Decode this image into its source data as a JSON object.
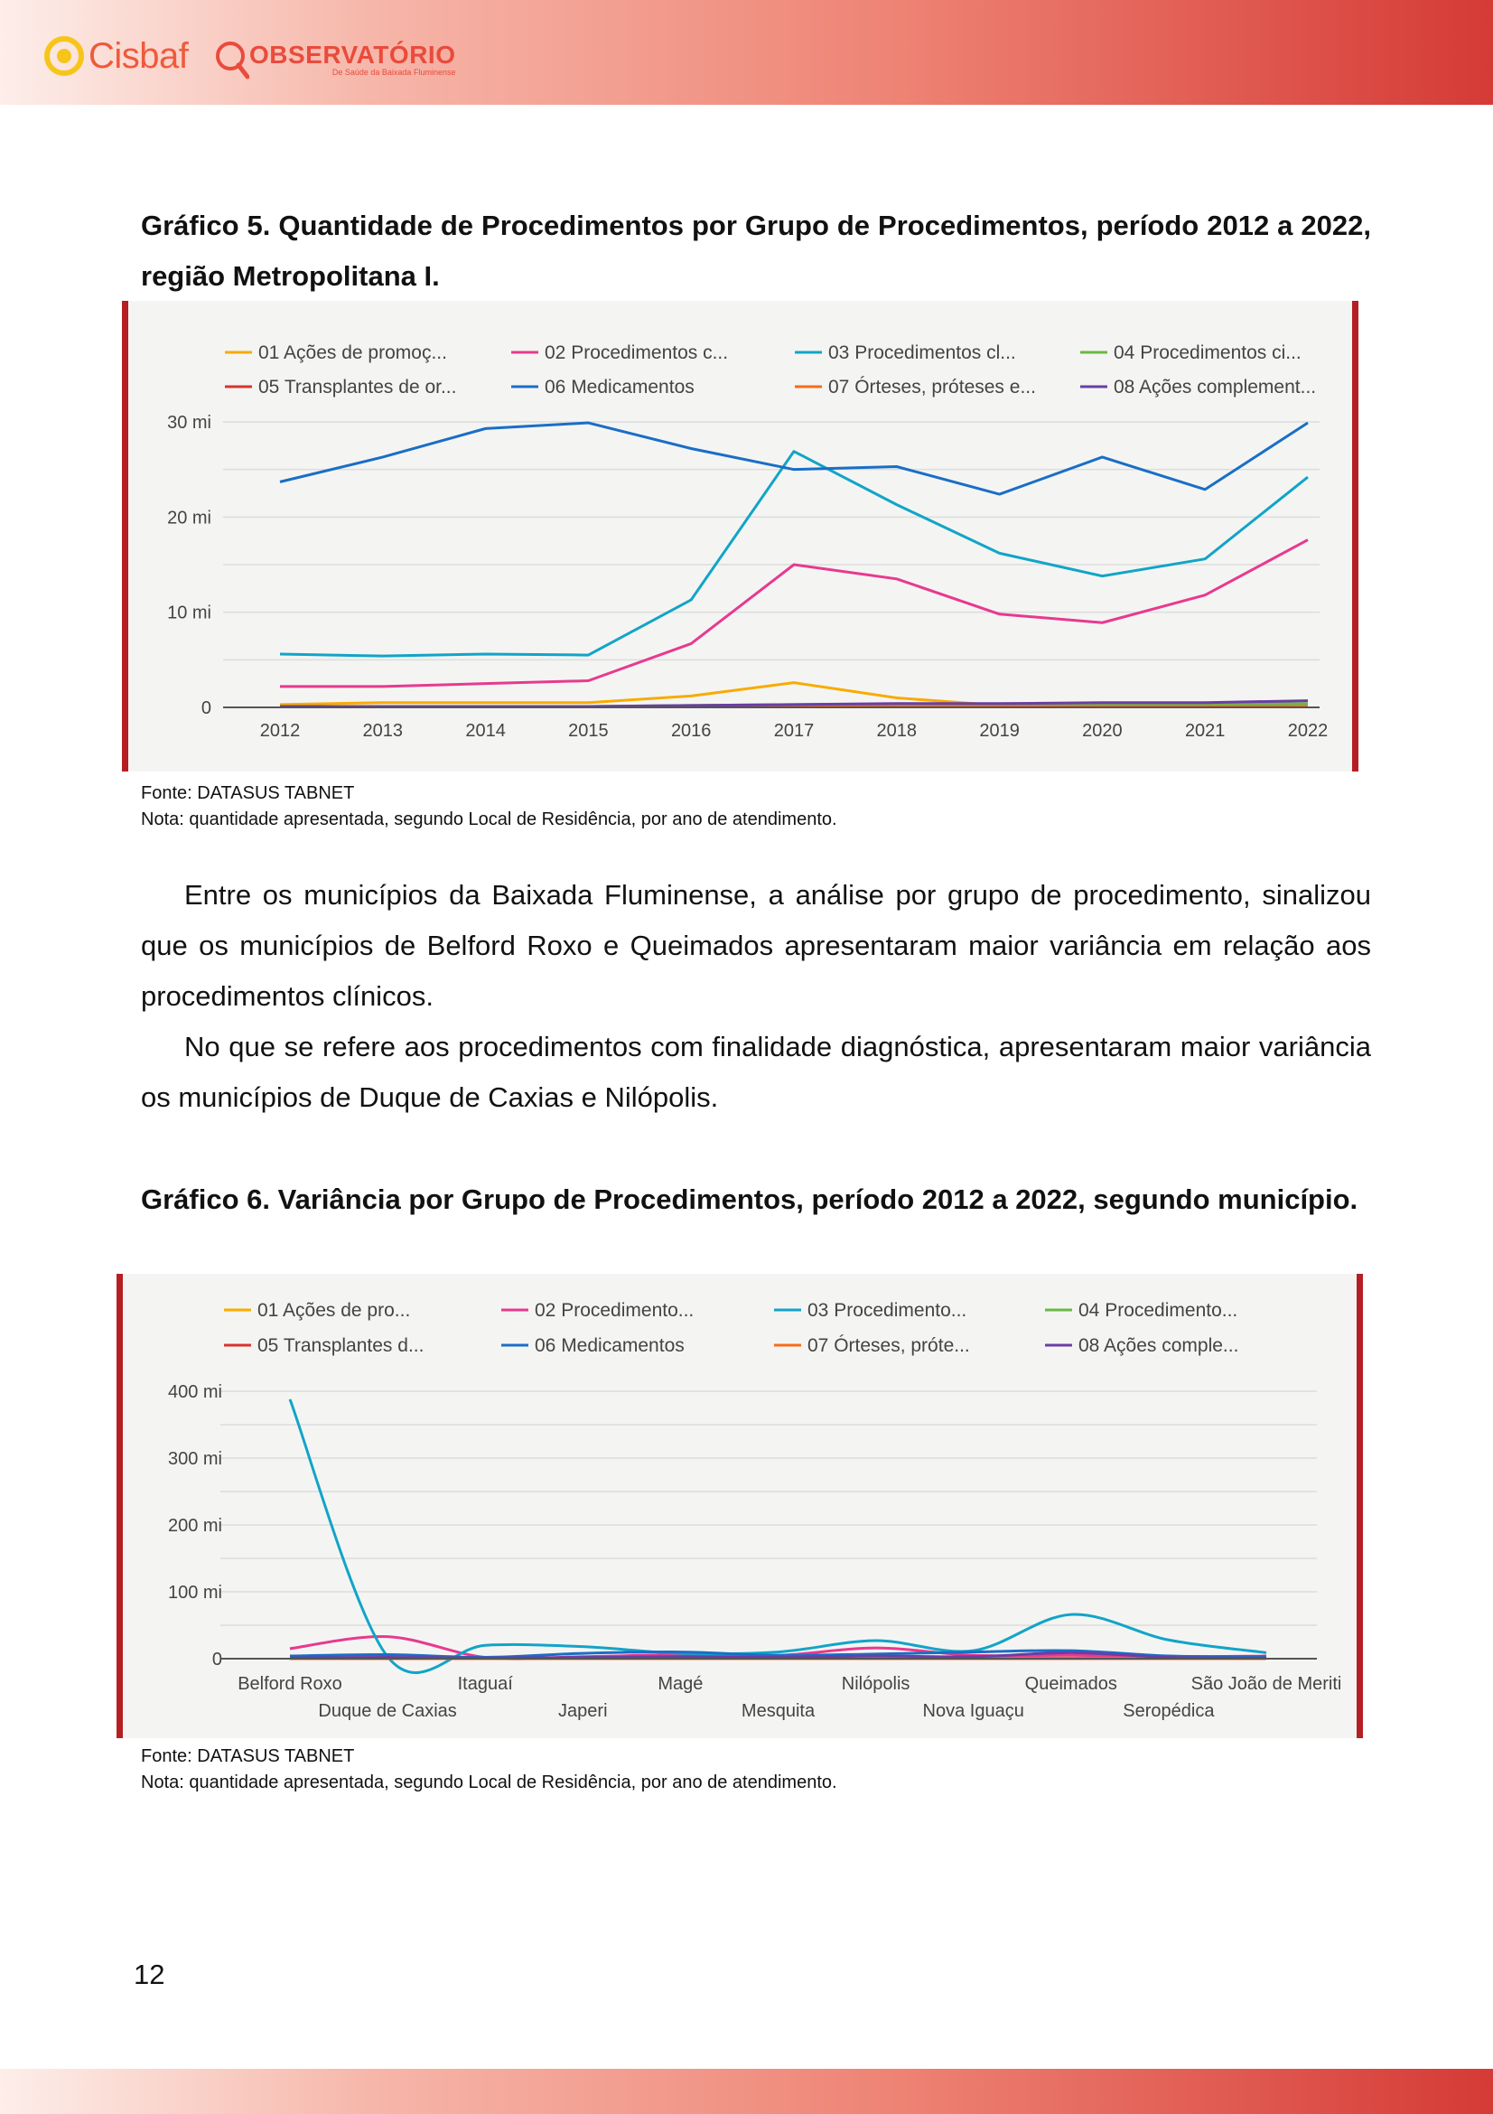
{
  "header": {
    "logo_cisbaf": "Cisbaf",
    "logo_observatorio": "OBSERVATÓRIO",
    "logo_observatorio_sub": "De Saúde da Baixada Fluminense"
  },
  "chart5": {
    "heading": "Gráfico 5. Quantidade de Procedimentos por Grupo de Procedimentos, período 2012 a 2022, região Metropolitana I.",
    "source": "Fonte: DATASUS TABNET",
    "note": "Nota: quantidade apresentada, segundo Local de Residência, por ano de atendimento."
  },
  "paragraphs": [
    "Entre os municípios da Baixada Fluminense, a análise por grupo de procedimento, sinalizou que os municípios de Belford Roxo e Queimados apresentaram maior variância em relação aos procedimentos clínicos.",
    "No que se refere aos procedimentos com finalidade diagnóstica, apresentaram maior variância os municípios de Duque de Caxias e Nilópolis."
  ],
  "chart6": {
    "heading": "Gráfico 6. Variância por Grupo de Procedimentos, período 2012 a 2022, segundo município.",
    "source": "Fonte: DATASUS TABNET",
    "note": "Nota: quantidade apresentada, segundo Local de Residência, por ano de atendimento."
  },
  "page_number": "12",
  "chart_data": [
    {
      "type": "line",
      "x": [
        "2012",
        "2013",
        "2014",
        "2015",
        "2016",
        "2017",
        "2018",
        "2019",
        "2020",
        "2021",
        "2022"
      ],
      "ylim": [
        0,
        30
      ],
      "yticks": [
        {
          "value": 0,
          "label": "0"
        },
        {
          "value": 10,
          "label": "10 mi"
        },
        {
          "value": 20,
          "label": "20 mi"
        },
        {
          "value": 30,
          "label": "30 mi"
        }
      ],
      "grid": true,
      "legend": "top",
      "series": [
        {
          "name": "01 Ações de promoç...",
          "color": "#f9ab00",
          "values": [
            0.3,
            0.5,
            0.5,
            0.5,
            1.2,
            2.6,
            1.0,
            0.2,
            0.2,
            0.2,
            0.3
          ]
        },
        {
          "name": "02 Procedimentos c...",
          "color": "#e8398f",
          "values": [
            2.2,
            2.2,
            2.5,
            2.8,
            6.7,
            15.0,
            13.5,
            9.8,
            8.9,
            11.8,
            17.6
          ]
        },
        {
          "name": "03 Procedimentos cl...",
          "color": "#12a4c8",
          "values": [
            5.6,
            5.4,
            5.6,
            5.5,
            11.3,
            26.9,
            21.3,
            16.2,
            13.8,
            15.6,
            24.2
          ]
        },
        {
          "name": "04 Procedimentos ci...",
          "color": "#6bb746",
          "values": [
            0.1,
            0.1,
            0.1,
            0.1,
            0.2,
            0.3,
            0.3,
            0.3,
            0.3,
            0.3,
            0.4
          ]
        },
        {
          "name": "05 Transplantes de or...",
          "color": "#d8342c",
          "values": [
            0.05,
            0.05,
            0.05,
            0.05,
            0.05,
            0.05,
            0.05,
            0.05,
            0.05,
            0.05,
            0.05
          ]
        },
        {
          "name": "06 Medicamentos",
          "color": "#1a6ec6",
          "values": [
            23.7,
            26.3,
            29.3,
            29.9,
            27.2,
            25.0,
            25.3,
            22.4,
            26.3,
            22.9,
            29.9
          ]
        },
        {
          "name": "07 Órteses, próteses e...",
          "color": "#f56b1a",
          "values": [
            0.1,
            0.1,
            0.1,
            0.1,
            0.1,
            0.1,
            0.1,
            0.1,
            0.1,
            0.1,
            0.1
          ]
        },
        {
          "name": "08 Ações complement...",
          "color": "#6a3ea5",
          "values": [
            0.1,
            0.1,
            0.1,
            0.1,
            0.2,
            0.3,
            0.4,
            0.4,
            0.5,
            0.5,
            0.7
          ]
        }
      ]
    },
    {
      "type": "line",
      "x": [
        "Belford Roxo",
        "Duque de Caxias",
        "Itaguaí",
        "Japeri",
        "Magé",
        "Mesquita",
        "Nilópolis",
        "Nova Iguaçu",
        "Queimados",
        "Seropédica",
        "São João de Meriti"
      ],
      "ylim": [
        0,
        400
      ],
      "yticks": [
        {
          "value": 0,
          "label": "0"
        },
        {
          "value": 100,
          "label": "100 mi"
        },
        {
          "value": 200,
          "label": "200 mi"
        },
        {
          "value": 300,
          "label": "300 mi"
        },
        {
          "value": 400,
          "label": "400 mi"
        }
      ],
      "grid": true,
      "legend": "top",
      "series": [
        {
          "name": "01 Ações de pro...",
          "color": "#f9ab00",
          "values": [
            1,
            1,
            1,
            1,
            1,
            1,
            1,
            1,
            1,
            1,
            1
          ]
        },
        {
          "name": "02 Procedimento...",
          "color": "#e8398f",
          "values": [
            15,
            33,
            2,
            3,
            6,
            5,
            16,
            5,
            5,
            3,
            4
          ]
        },
        {
          "name": "03 Procedimento...",
          "color": "#12a4c8",
          "values": [
            388,
            3,
            20,
            18,
            8,
            10,
            27,
            12,
            66,
            28,
            9
          ]
        },
        {
          "name": "04 Procedimento...",
          "color": "#6bb746",
          "values": [
            0.5,
            0.5,
            0.5,
            0.5,
            0.5,
            0.5,
            0.5,
            0.5,
            0.5,
            0.5,
            0.5
          ]
        },
        {
          "name": "05 Transplantes d...",
          "color": "#d8342c",
          "values": [
            0.2,
            0.2,
            0.2,
            0.2,
            0.2,
            0.2,
            0.2,
            0.2,
            0.2,
            0.2,
            0.2
          ]
        },
        {
          "name": "06 Medicamentos",
          "color": "#1a6ec6",
          "values": [
            4,
            6,
            2,
            8,
            10,
            5,
            7,
            10,
            12,
            4,
            3
          ]
        },
        {
          "name": "07 Órteses, próte...",
          "color": "#f56b1a",
          "values": [
            0.3,
            0.3,
            0.3,
            0.3,
            0.3,
            0.3,
            0.3,
            0.3,
            0.3,
            0.3,
            0.3
          ]
        },
        {
          "name": "08 Ações comple...",
          "color": "#6a3ea5",
          "values": [
            1,
            2,
            1,
            2,
            3,
            2,
            4,
            3,
            9,
            2,
            1
          ]
        }
      ]
    }
  ]
}
